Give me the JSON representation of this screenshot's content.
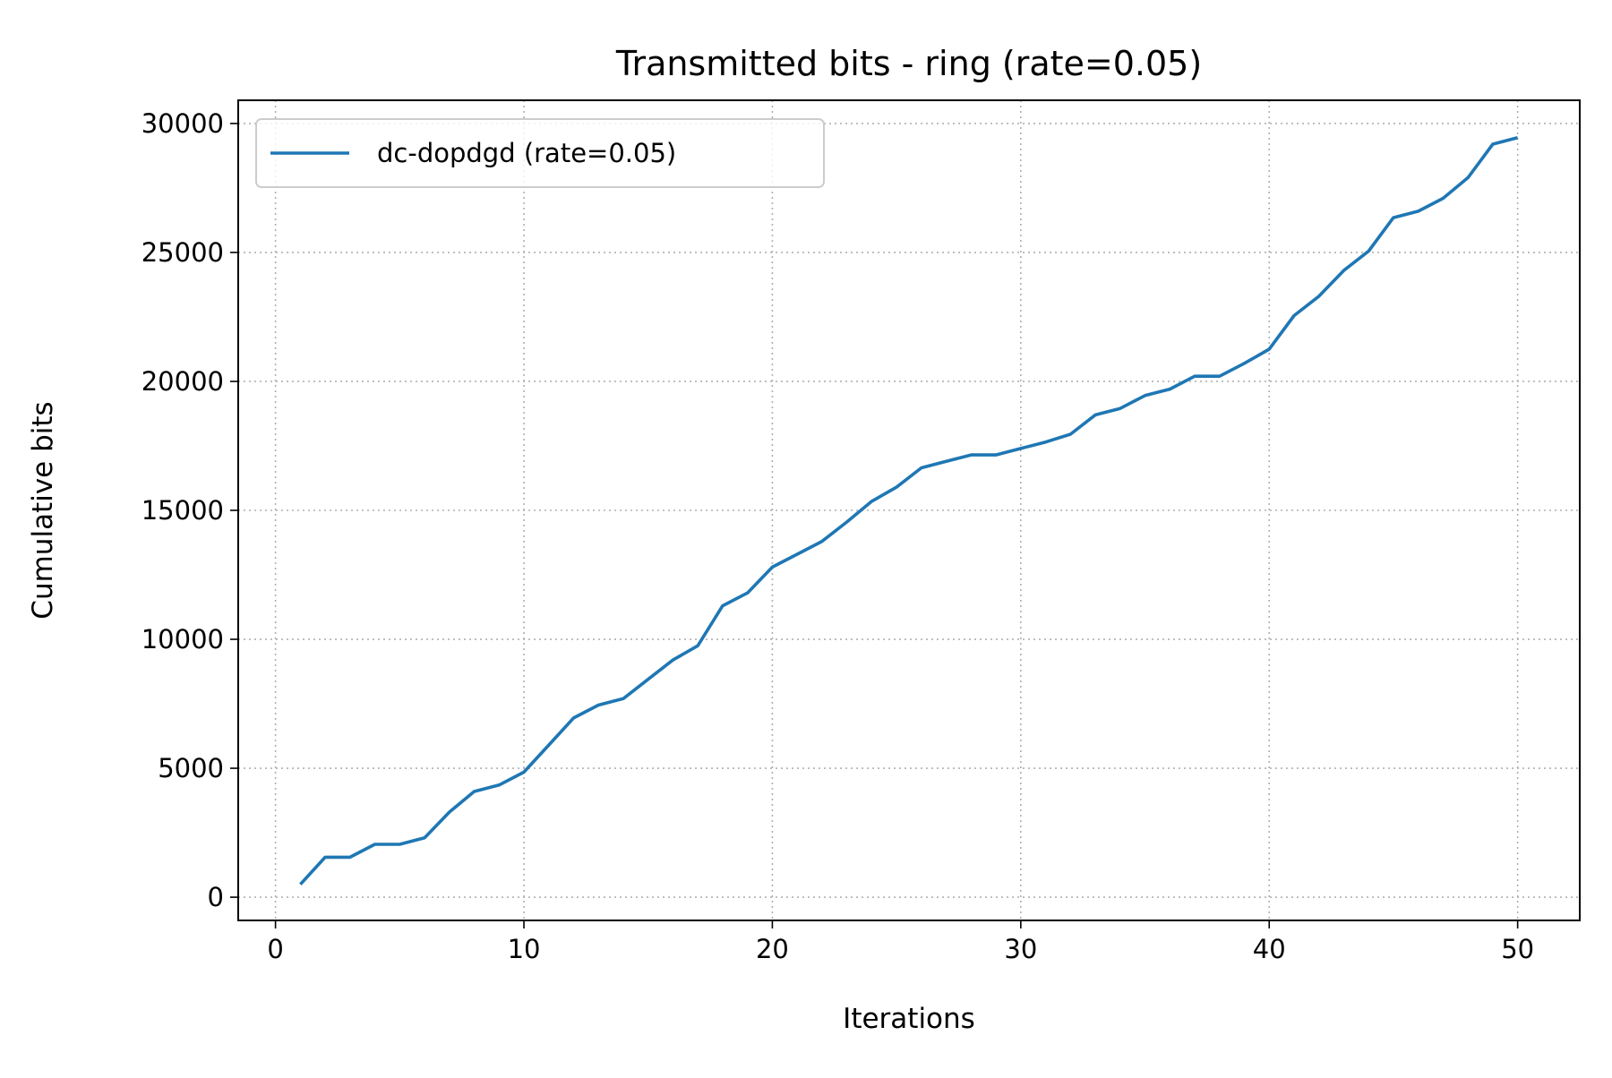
{
  "chart_data": {
    "type": "line",
    "title": "Transmitted bits - ring (rate=0.05)",
    "xlabel": "Iterations",
    "ylabel": "Cumulative bits",
    "xlim": [
      -1.5,
      52.5
    ],
    "ylim": [
      -900,
      30900
    ],
    "xticks": [
      0,
      10,
      20,
      30,
      40,
      50
    ],
    "yticks": [
      0,
      5000,
      10000,
      15000,
      20000,
      25000,
      30000
    ],
    "grid": true,
    "legend_position": "upper-left",
    "series": [
      {
        "name": "dc-dopdgd (rate=0.05)",
        "color": "#1f77b4",
        "x": [
          1,
          2,
          3,
          4,
          5,
          6,
          7,
          8,
          9,
          10,
          11,
          12,
          13,
          14,
          15,
          16,
          17,
          18,
          19,
          20,
          21,
          22,
          23,
          24,
          25,
          26,
          27,
          28,
          29,
          30,
          31,
          32,
          33,
          34,
          35,
          36,
          37,
          38,
          39,
          40,
          41,
          42,
          43,
          44,
          45,
          46,
          47,
          48,
          49,
          50
        ],
        "y": [
          500,
          1550,
          1550,
          2050,
          2050,
          2300,
          3300,
          4100,
          4350,
          4850,
          5900,
          6950,
          7450,
          7700,
          8450,
          9200,
          9750,
          11300,
          11800,
          12800,
          13300,
          13800,
          14550,
          15350,
          15900,
          16650,
          16900,
          17150,
          17150,
          17400,
          17650,
          17950,
          18700,
          18950,
          19450,
          19700,
          20200,
          20200,
          20700,
          21250,
          22550,
          23300,
          24300,
          25050,
          26350,
          26600,
          27100,
          27900,
          29200,
          29450
        ]
      }
    ]
  }
}
